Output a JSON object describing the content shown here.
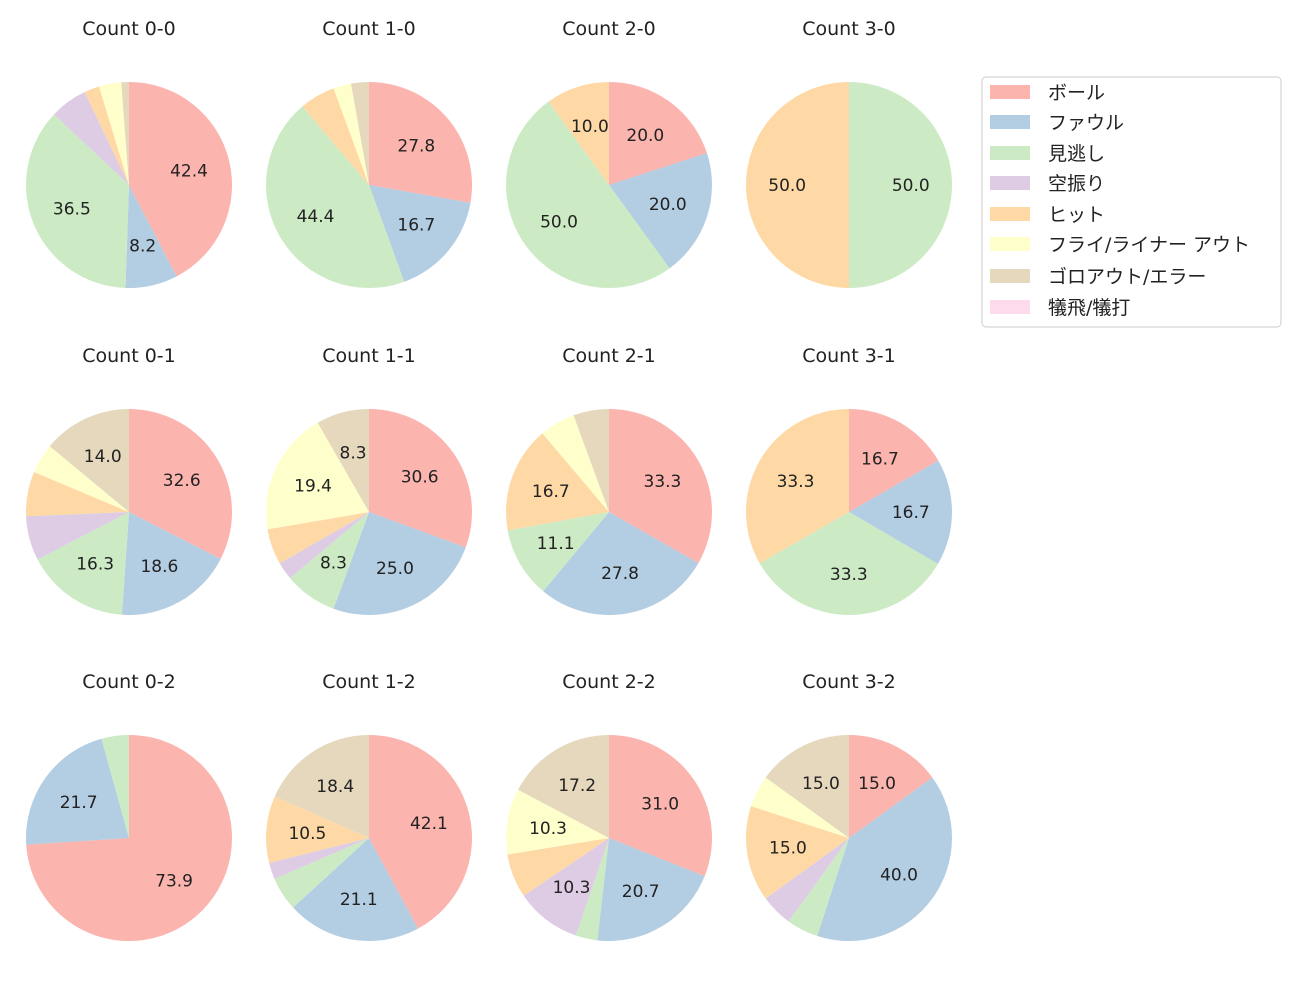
{
  "chart_data": {
    "type": "pie",
    "start_angle": "top, clockwise",
    "legend": {
      "placement": "right",
      "entries": [
        "ボール",
        "ファウル",
        "見逃し",
        "空振り",
        "ヒット",
        "フライ/ライナー アウト",
        "ゴロアウト/エラー",
        "犠飛/犠打"
      ]
    },
    "colors": [
      "#fbb4ae",
      "#b3cde3",
      "#ccebc5",
      "#decbe4",
      "#fed9a6",
      "#ffffcc",
      "#e5d8bd",
      "#fddaec"
    ],
    "label_threshold_percent": 8,
    "charts": [
      {
        "title": "Count 0-0",
        "values": [
          42.4,
          8.2,
          36.5,
          5.9,
          2.4,
          3.5,
          1.2,
          0
        ]
      },
      {
        "title": "Count 1-0",
        "values": [
          27.8,
          16.7,
          44.4,
          0,
          5.6,
          2.8,
          2.8,
          0
        ]
      },
      {
        "title": "Count 2-0",
        "values": [
          20.0,
          20.0,
          50.0,
          0,
          10.0,
          0,
          0,
          0
        ]
      },
      {
        "title": "Count 3-0",
        "values": [
          0,
          0,
          50.0,
          0,
          50.0,
          0,
          0,
          0
        ]
      },
      {
        "title": "Count 0-1",
        "values": [
          32.6,
          18.6,
          16.3,
          7.0,
          7.0,
          4.7,
          14.0,
          0
        ]
      },
      {
        "title": "Count 1-1",
        "values": [
          30.6,
          25.0,
          8.3,
          2.8,
          5.6,
          19.4,
          8.3,
          0
        ]
      },
      {
        "title": "Count 2-1",
        "values": [
          33.3,
          27.8,
          11.1,
          0,
          16.7,
          5.6,
          5.6,
          0
        ]
      },
      {
        "title": "Count 3-1",
        "values": [
          16.7,
          16.7,
          33.3,
          0,
          33.3,
          0,
          0,
          0
        ]
      },
      {
        "title": "Count 0-2",
        "values": [
          73.9,
          21.7,
          4.3,
          0,
          0,
          0,
          0,
          0
        ]
      },
      {
        "title": "Count 1-2",
        "values": [
          42.1,
          21.1,
          5.3,
          2.6,
          10.5,
          0,
          18.4,
          0
        ]
      },
      {
        "title": "Count 2-2",
        "values": [
          31.0,
          20.7,
          3.4,
          10.3,
          6.9,
          10.3,
          17.2,
          0
        ]
      },
      {
        "title": "Count 3-2",
        "values": [
          15.0,
          40.0,
          5.0,
          5.0,
          15.0,
          5.0,
          15.0,
          0
        ]
      }
    ]
  }
}
